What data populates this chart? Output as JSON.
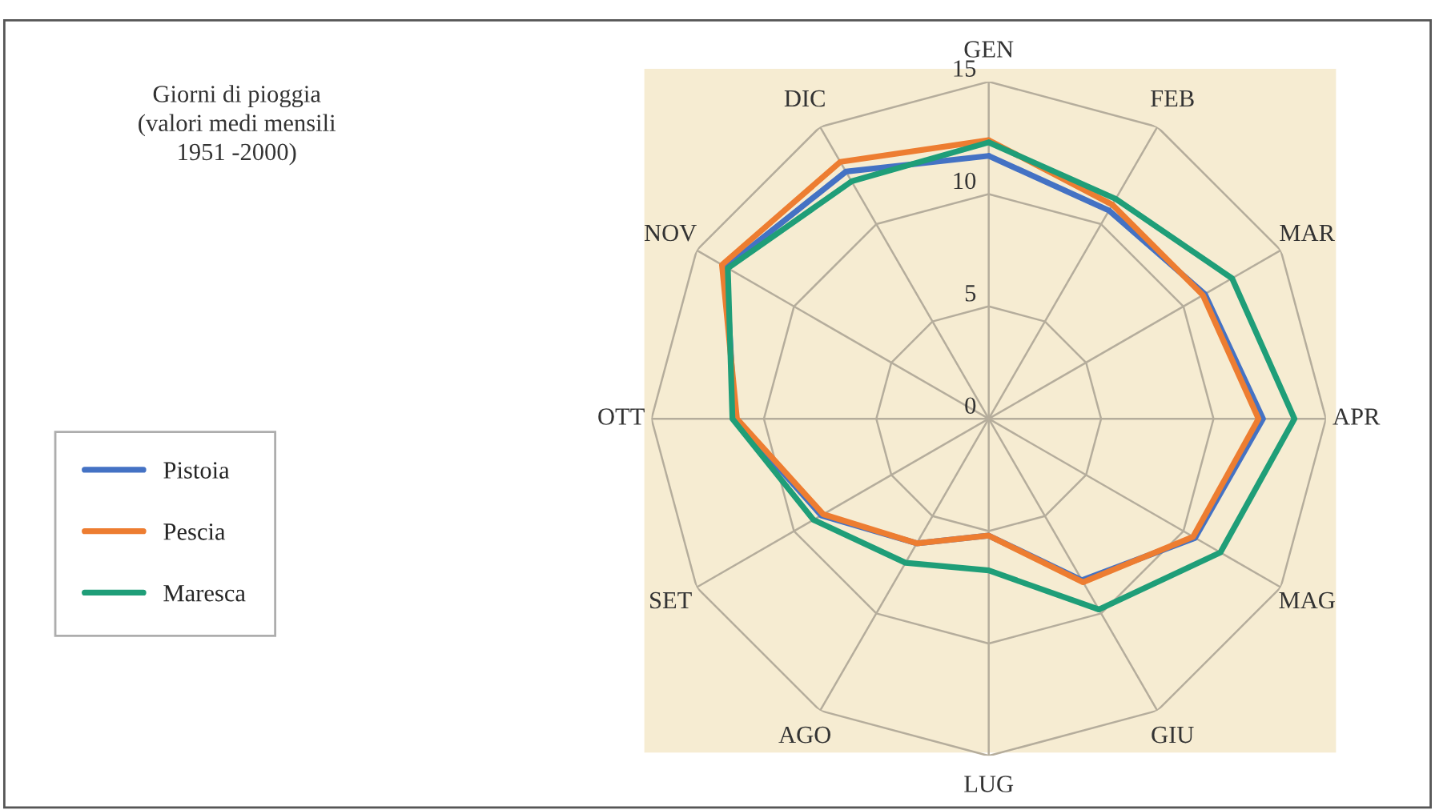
{
  "chart_data": {
    "type": "radar",
    "title": "Giorni di pioggia\n(valori medi mensili\n1951 -2000)",
    "categories": [
      "GEN",
      "FEB",
      "MAR",
      "APR",
      "MAG",
      "GIU",
      "LUG",
      "AGO",
      "SET",
      "OTT",
      "NOV",
      "DIC"
    ],
    "series": [
      {
        "name": "Pistoia",
        "color": "#4472c4",
        "values": [
          11.7,
          10.7,
          11.1,
          12.2,
          10.6,
          8.3,
          5.2,
          6.4,
          8.6,
          11.3,
          13.5,
          12.7
        ]
      },
      {
        "name": "Pescia",
        "color": "#ed7d31",
        "values": [
          12.4,
          11.0,
          11.0,
          12.0,
          10.5,
          8.4,
          5.2,
          6.4,
          8.5,
          11.2,
          13.7,
          13.2
        ]
      },
      {
        "name": "Maresca",
        "color": "#1f9e78",
        "values": [
          12.3,
          11.3,
          12.5,
          13.6,
          11.9,
          9.8,
          6.75,
          7.4,
          9.0,
          11.4,
          13.4,
          12.2
        ]
      }
    ],
    "ylim": [
      0,
      15
    ],
    "yticks": [
      0,
      5,
      10,
      15
    ],
    "grid": true,
    "legend": "bottom left"
  }
}
